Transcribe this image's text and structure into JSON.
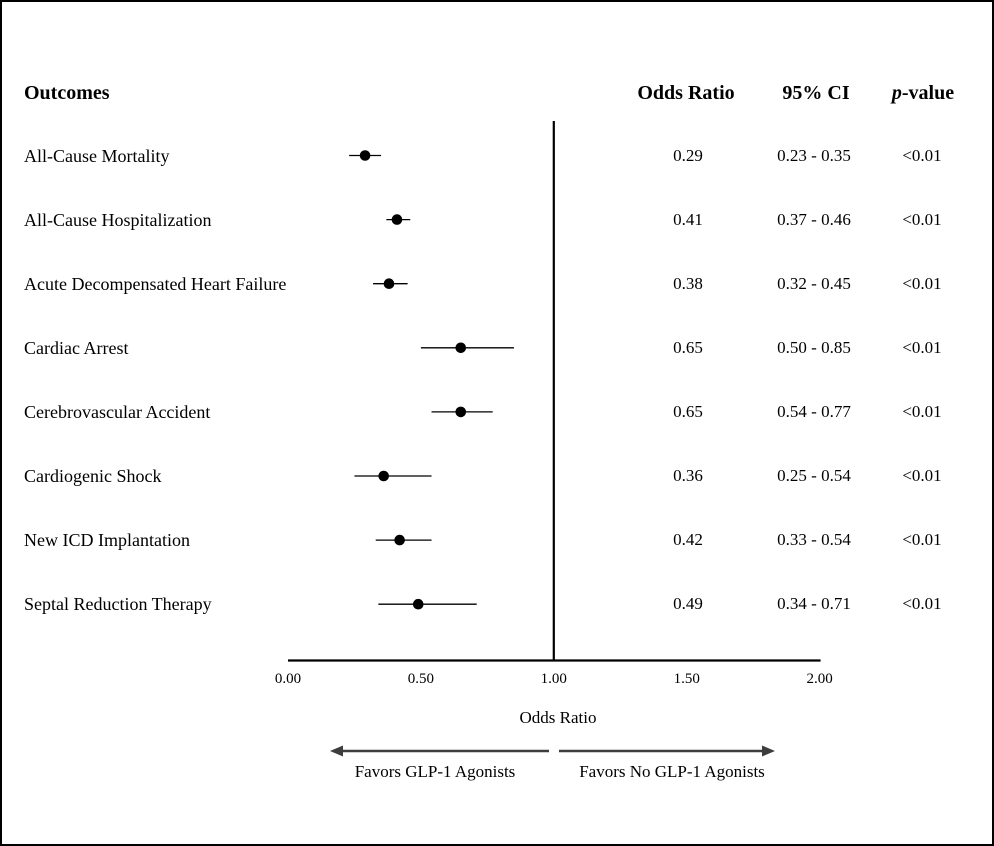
{
  "header": {
    "outcomes_label": "Outcomes",
    "odds_ratio_label": "Odds Ratio",
    "ci_label": "95% CI",
    "p_label_italic": "p",
    "p_label_rest": "-value"
  },
  "chart_data": {
    "type": "forest",
    "xlabel": "Odds Ratio",
    "xlim": [
      0.0,
      2.0
    ],
    "reference_line": 1.0,
    "x_ticks": [
      {
        "value": 0.0,
        "label": "0.00"
      },
      {
        "value": 0.5,
        "label": "0.50"
      },
      {
        "value": 1.0,
        "label": "1.00"
      },
      {
        "value": 1.5,
        "label": "1.50"
      },
      {
        "value": 2.0,
        "label": "2.00"
      }
    ],
    "rows": [
      {
        "label": "All-Cause Mortality",
        "or": 0.29,
        "ci_low": 0.23,
        "ci_high": 0.35,
        "or_text": "0.29",
        "ci_text": "0.23 - 0.35",
        "p_text": "<0.01"
      },
      {
        "label": "All-Cause Hospitalization",
        "or": 0.41,
        "ci_low": 0.37,
        "ci_high": 0.46,
        "or_text": "0.41",
        "ci_text": "0.37 - 0.46",
        "p_text": "<0.01"
      },
      {
        "label": "Acute Decompensated Heart Failure",
        "or": 0.38,
        "ci_low": 0.32,
        "ci_high": 0.45,
        "or_text": "0.38",
        "ci_text": "0.32 - 0.45",
        "p_text": "<0.01"
      },
      {
        "label": "Cardiac Arrest",
        "or": 0.65,
        "ci_low": 0.5,
        "ci_high": 0.85,
        "or_text": "0.65",
        "ci_text": "0.50 - 0.85",
        "p_text": "<0.01"
      },
      {
        "label": "Cerebrovascular Accident",
        "or": 0.65,
        "ci_low": 0.54,
        "ci_high": 0.77,
        "or_text": "0.65",
        "ci_text": "0.54 - 0.77",
        "p_text": "<0.01"
      },
      {
        "label": "Cardiogenic Shock",
        "or": 0.36,
        "ci_low": 0.25,
        "ci_high": 0.54,
        "or_text": "0.36",
        "ci_text": "0.25 - 0.54",
        "p_text": "<0.01"
      },
      {
        "label": "New ICD Implantation",
        "or": 0.42,
        "ci_low": 0.33,
        "ci_high": 0.54,
        "or_text": "0.42",
        "ci_text": "0.33 - 0.54",
        "p_text": "<0.01"
      },
      {
        "label": "Septal Reduction Therapy",
        "or": 0.49,
        "ci_low": 0.34,
        "ci_high": 0.71,
        "or_text": "0.49",
        "ci_text": "0.34 - 0.71",
        "p_text": "<0.01"
      }
    ],
    "footer": {
      "left_arrow_label": "Favors GLP-1 Agonists",
      "right_arrow_label": "Favors No GLP-1 Agonists"
    },
    "colors": {
      "marker": "#000000",
      "axis": "#000000",
      "arrow": "#3d3d3d",
      "text": "#000000"
    },
    "legend": null,
    "grid": false
  }
}
